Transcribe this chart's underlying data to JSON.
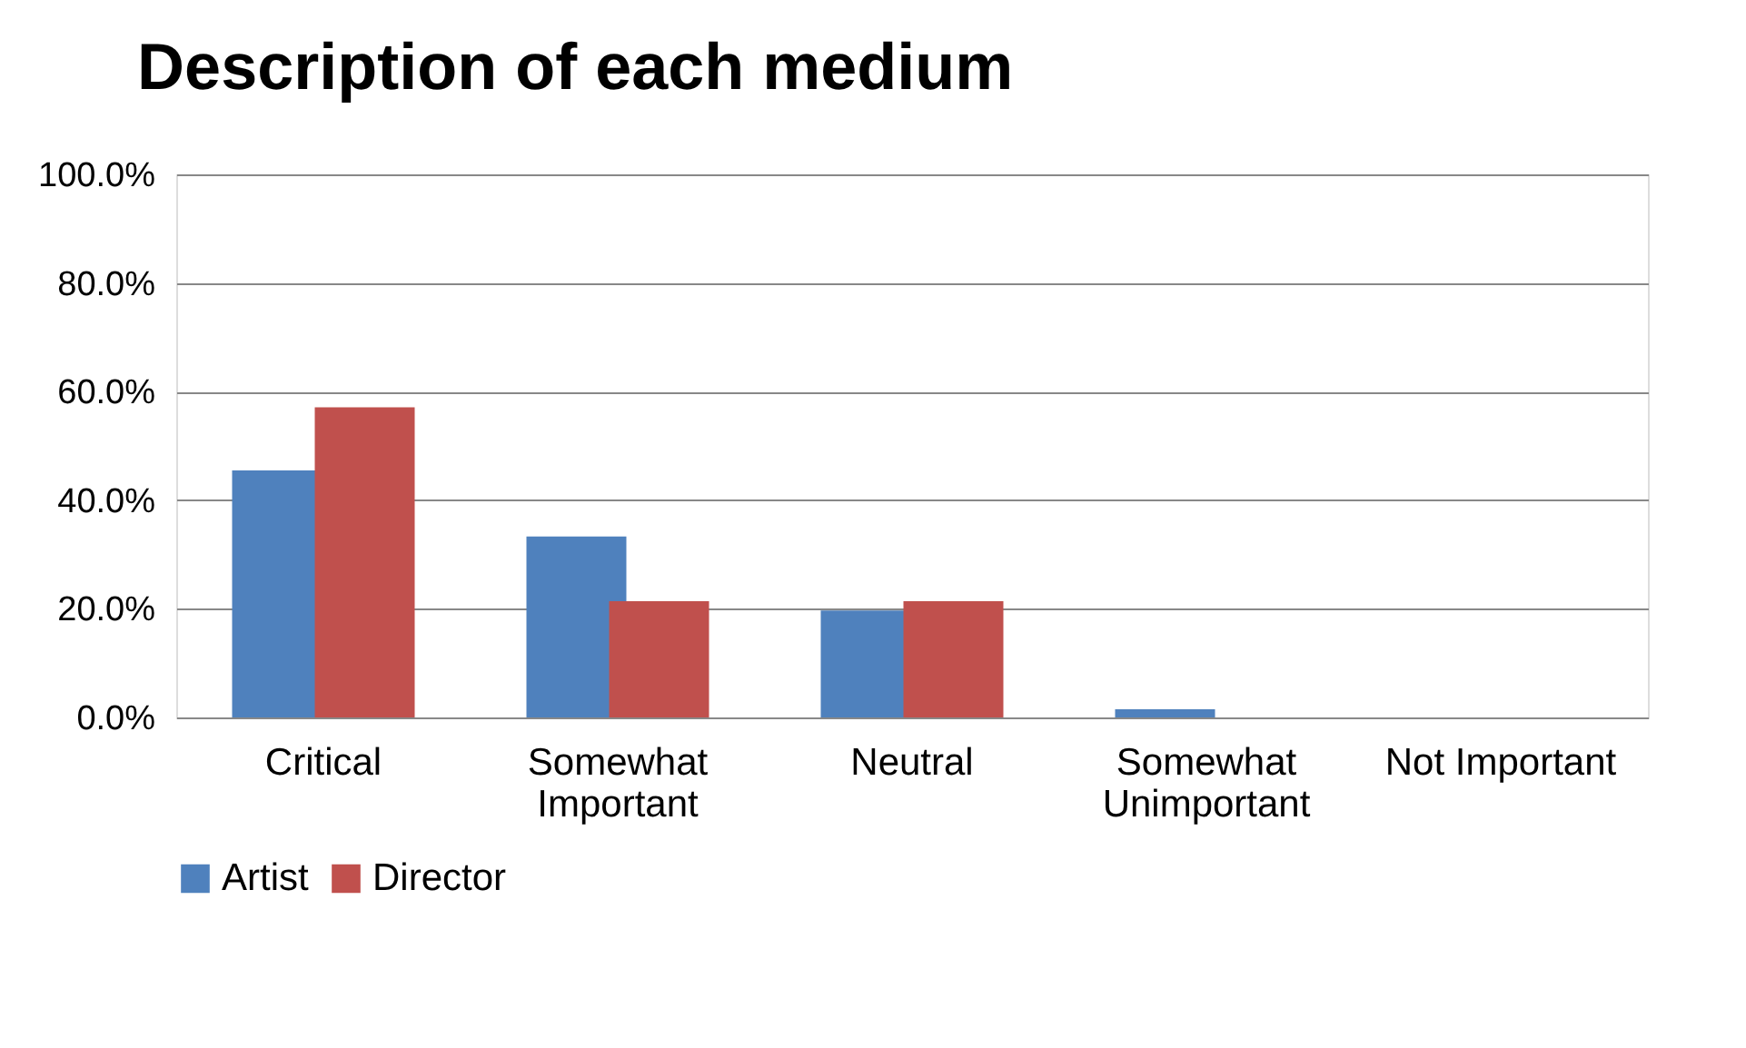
{
  "chart_data": {
    "type": "bar",
    "title": "Description of each medium",
    "categories": [
      "Critical",
      "Somewhat Important",
      "Neutral",
      "Somewhat Unimportant",
      "Not Important"
    ],
    "series": [
      {
        "name": "Artist",
        "color": "#4f81bd",
        "values": [
          45.5,
          33.3,
          19.7,
          1.5,
          0
        ]
      },
      {
        "name": "Director",
        "color": "#c0504d",
        "values": [
          57.1,
          21.4,
          21.4,
          0,
          0
        ]
      }
    ],
    "ylim": [
      0,
      100
    ],
    "yticks": [
      {
        "value": 0,
        "label": "0.0%"
      },
      {
        "value": 20,
        "label": "20.0%"
      },
      {
        "value": 40,
        "label": "40.0%"
      },
      {
        "value": 60,
        "label": "60.0%"
      },
      {
        "value": 80,
        "label": "80.0%"
      },
      {
        "value": 100,
        "label": "100.0%"
      }
    ],
    "grid": "y",
    "legend": "bottom"
  }
}
